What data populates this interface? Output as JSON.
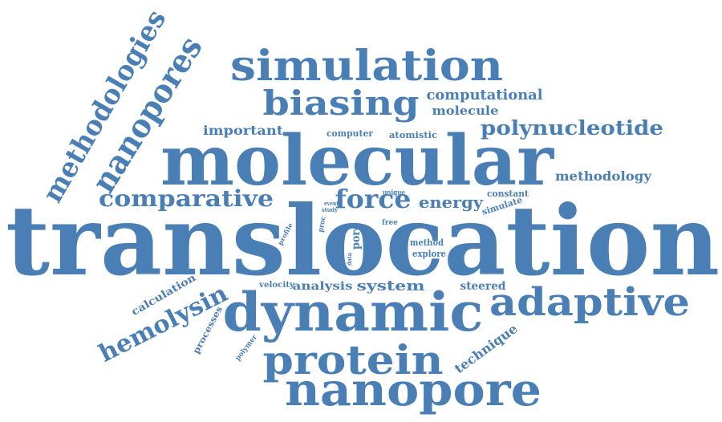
{
  "word_color": "#4a7fb5",
  "background": "#ffffff",
  "words": [
    "translocation",
    "molecular",
    "dynamic",
    "adaptive",
    "nanopore",
    "protein",
    "simulation",
    "biasing",
    "nanopores",
    "methodologies",
    "comparative",
    "force",
    "hemolysin",
    "polynucleotide",
    "energy",
    "computational",
    "molecule",
    "important",
    "methodology",
    "technique",
    "system",
    "analysis",
    "steered",
    "calculation",
    "processes",
    "computer",
    "atomistic",
    "constant",
    "simulate",
    "unique",
    "event",
    "study",
    "proc",
    "free",
    "pore",
    "data",
    "method",
    "explore",
    "velocity",
    "polymer",
    "profile"
  ]
}
